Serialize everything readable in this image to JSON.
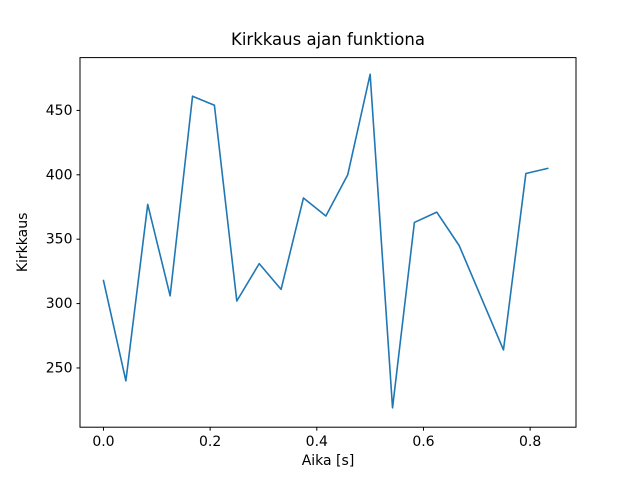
{
  "chart_data": {
    "type": "line",
    "title": "Kirkkaus ajan funktiona",
    "xlabel": "Aika [s]",
    "ylabel": "Kirkkaus",
    "x": [
      0.0,
      0.042,
      0.083,
      0.125,
      0.167,
      0.208,
      0.25,
      0.292,
      0.333,
      0.375,
      0.417,
      0.458,
      0.5,
      0.542,
      0.583,
      0.625,
      0.667,
      0.708,
      0.75,
      0.792,
      0.833
    ],
    "y": [
      318,
      240,
      377,
      306,
      461,
      454,
      302,
      331,
      311,
      382,
      368,
      400,
      478,
      219,
      363,
      371,
      345,
      305,
      264,
      401,
      405
    ],
    "xticks": [
      0.0,
      0.2,
      0.4,
      0.6,
      0.8
    ],
    "yticks": [
      250,
      300,
      350,
      400,
      450
    ],
    "xlim": [
      -0.044,
      0.886
    ],
    "ylim": [
      204,
      491
    ],
    "line_color": "#1f77b4",
    "axis_color": "#000000",
    "background": "#ffffff",
    "grid": false,
    "legend": null
  }
}
